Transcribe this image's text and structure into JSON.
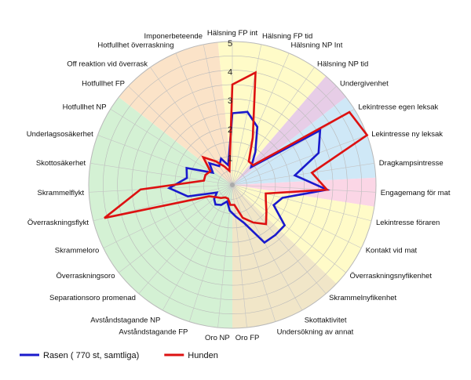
{
  "chart_data": {
    "type": "radar",
    "title": "",
    "r_range": [
      0,
      5
    ],
    "r_ticks": [
      "1",
      "2",
      "3",
      "4",
      "5"
    ],
    "grid": true,
    "legend_position": "bottom-left",
    "categories": [
      "Hälsning FP int",
      "Hälsning FP tid",
      "Hälsning NP Int",
      "Hälsning NP tid",
      "Undergivenhet",
      "Lekintresse egen leksak",
      "Lekintresse ny leksak",
      "Dragkampsintresse",
      "Engagemang för mat",
      "Lekintresse föraren",
      "Kontakt vid mat",
      "Överraskningsnyfikenhet",
      "Skrammelnyfikenhet",
      "Skottaktivitet",
      "Undersökning av annat",
      "Oro FP",
      "Oro NP",
      "Avståndstagande FP",
      "Avståndstagande NP",
      "Separationsoro promenad",
      "Överraskningsoro",
      "Skrammeloro",
      "Överraskningsflykt",
      "Skrammelflykt",
      "Skottosäkerhet",
      "Underlagsosäkerhet",
      "Hotfullhet NP",
      "Hotfullhet FP",
      "Off reaktion vid överrask",
      "Hotfullhet överraskning",
      "Imponerbeteende"
    ],
    "series": [
      {
        "name": "Rasen ( 770 st, samtliga)",
        "color": "#1a1acc",
        "values": [
          2.5,
          2.6,
          2.2,
          1.4,
          0.9,
          3.6,
          3.2,
          2.2,
          3.3,
          1.8,
          1.6,
          2.3,
          2.3,
          2.3,
          1.4,
          1.1,
          0.9,
          0.6,
          0.8,
          0.9,
          0.8,
          0.6,
          1.6,
          2.2,
          1.6,
          1.7,
          0.8,
          1.1,
          0.8,
          1.0,
          0.7
        ]
      },
      {
        "name": "Hunden",
        "color": "#dd1111",
        "values": [
          3.5,
          4.0,
          1.8,
          1.0,
          1.0,
          4.8,
          5.0,
          2.8,
          3.3,
          1.2,
          1.3,
          1.5,
          1.8,
          1.5,
          1.2,
          0.7,
          0.7,
          0.5,
          0.5,
          0.6,
          0.7,
          0.9,
          4.6,
          3.2,
          1.0,
          1.0,
          0.9,
          1.4,
          1.0,
          0.7,
          0.5
        ]
      }
    ],
    "sector_groups": [
      {
        "from": 0,
        "to": 3,
        "color": "#fffbc8"
      },
      {
        "from": 4,
        "to": 4,
        "color": "#e7cde7"
      },
      {
        "from": 5,
        "to": 7,
        "color": "#cfe8f7"
      },
      {
        "from": 8,
        "to": 8,
        "color": "#fbd6e6"
      },
      {
        "from": 9,
        "to": 11,
        "color": "#fffbc8"
      },
      {
        "from": 12,
        "to": 15,
        "color": "#f1e6c8"
      },
      {
        "from": 16,
        "to": 26,
        "color": "#d4f1d4"
      },
      {
        "from": 27,
        "to": 30,
        "color": "#fbe3c8"
      }
    ]
  }
}
